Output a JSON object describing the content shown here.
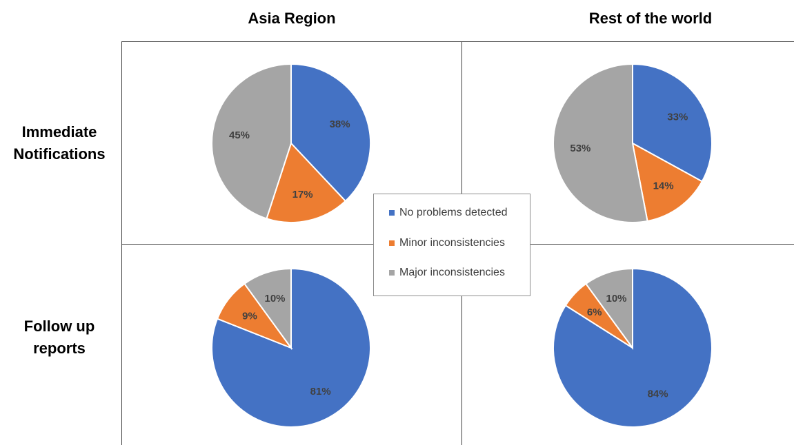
{
  "column_headers": [
    "Asia Region",
    "Rest of the world"
  ],
  "row_headers": [
    {
      "line1": "Immediate",
      "line2": "Notifications"
    },
    {
      "line1": "Follow up",
      "line2": "reports"
    }
  ],
  "legend": [
    {
      "label": "No problems detected",
      "color": "#4472C4"
    },
    {
      "label": "Minor inconsistencies",
      "color": "#ED7D31"
    },
    {
      "label": "Major inconsistencies",
      "color": "#A5A5A5"
    }
  ],
  "chart_data": [
    {
      "type": "pie",
      "row": "Immediate Notifications",
      "column": "Asia Region",
      "categories": [
        "No problems detected",
        "Minor inconsistencies",
        "Major inconsistencies"
      ],
      "values": [
        38,
        17,
        45
      ],
      "labels": [
        "38%",
        "17%",
        "45%"
      ]
    },
    {
      "type": "pie",
      "row": "Immediate Notifications",
      "column": "Rest of the world",
      "categories": [
        "No problems detected",
        "Minor inconsistencies",
        "Major inconsistencies"
      ],
      "values": [
        33,
        14,
        53
      ],
      "labels": [
        "33%",
        "14%",
        "53%"
      ]
    },
    {
      "type": "pie",
      "row": "Follow up reports",
      "column": "Asia Region",
      "categories": [
        "No problems detected",
        "Minor inconsistencies",
        "Major inconsistencies"
      ],
      "values": [
        81,
        9,
        10
      ],
      "labels": [
        "81%",
        "9%",
        "10%"
      ]
    },
    {
      "type": "pie",
      "row": "Follow up reports",
      "column": "Rest of the world",
      "categories": [
        "No problems detected",
        "Minor inconsistencies",
        "Major inconsistencies"
      ],
      "values": [
        84,
        6,
        10
      ],
      "labels": [
        "84%",
        "6%",
        "10%"
      ]
    }
  ]
}
